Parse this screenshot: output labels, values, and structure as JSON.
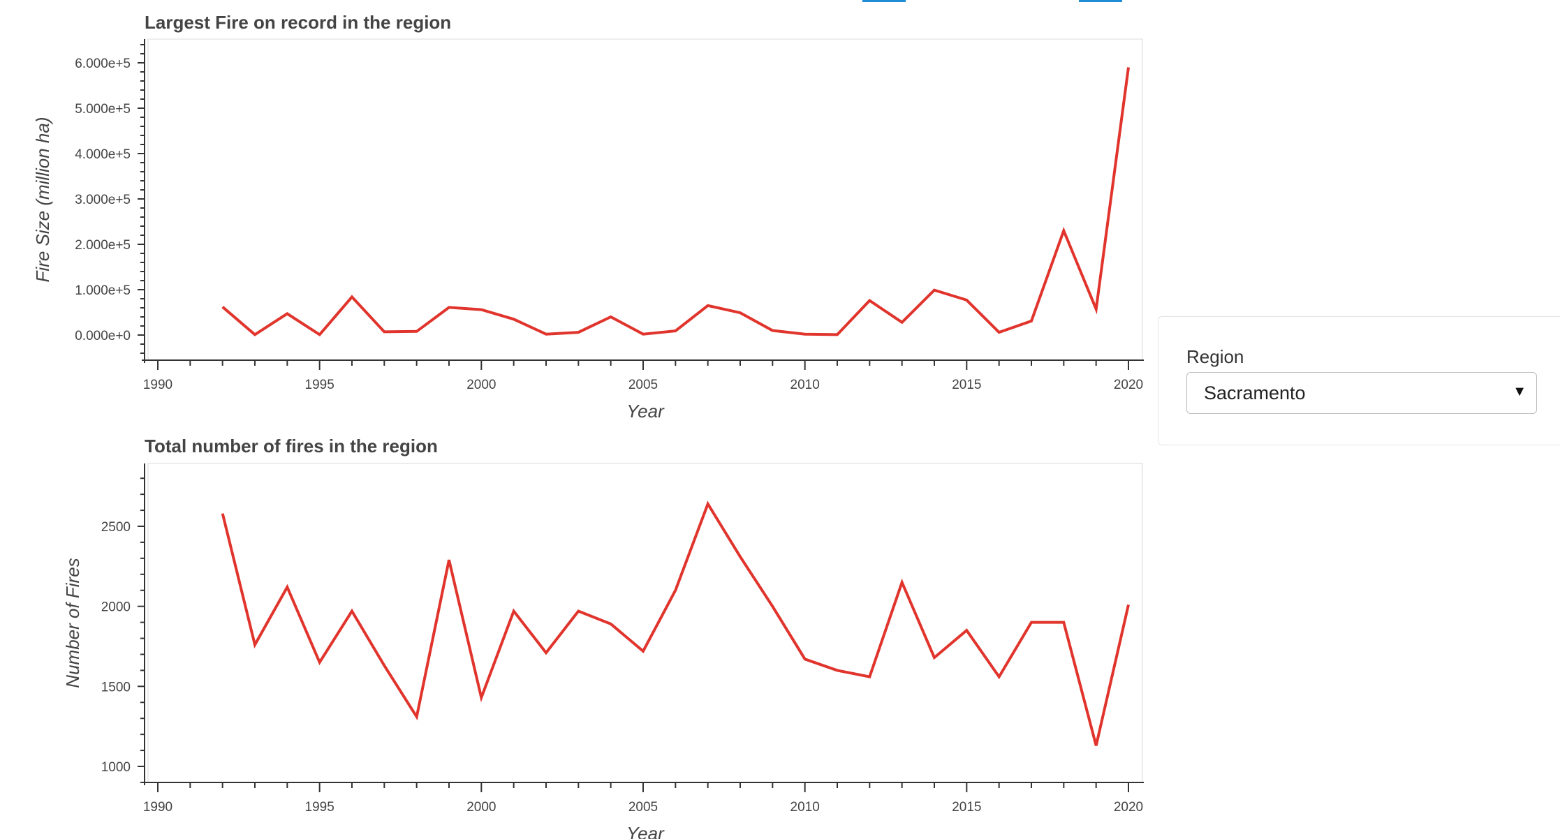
{
  "widget": {
    "label": "Region",
    "selected": "Sacramento"
  },
  "colors": {
    "line": "#e0342c",
    "frame": "#e6e6e6",
    "axis": "#333333",
    "tab": "#1f8dd6"
  },
  "chart_data": [
    {
      "type": "line",
      "title": "Largest Fire on record in the region",
      "xlabel": "Year",
      "ylabel": "Fire Size (million ha)",
      "xlim": [
        1990,
        2020
      ],
      "ylim": [
        0,
        600000
      ],
      "xticks": [
        "1990",
        "1995",
        "2000",
        "2005",
        "2010",
        "2015",
        "2020"
      ],
      "yticks": [
        "0.000e+0",
        "1.000e+5",
        "2.000e+5",
        "3.000e+5",
        "4.000e+5",
        "5.000e+5",
        "6.000e+5"
      ],
      "series": [
        {
          "x": [
            1992,
            1993,
            1994,
            1995,
            1996,
            1997,
            1998,
            1999,
            2000,
            2001,
            2002,
            2003,
            2004,
            2005,
            2006,
            2007,
            2008,
            2009,
            2010,
            2011,
            2012,
            2013,
            2014,
            2015,
            2016,
            2017,
            2018,
            2019,
            2020
          ],
          "values": [
            62000,
            1000,
            47000,
            1000,
            84000,
            7000,
            8000,
            61000,
            56000,
            35000,
            2000,
            6000,
            40000,
            2000,
            9000,
            65000,
            49000,
            10000,
            2000,
            1000,
            76000,
            28000,
            99000,
            77000,
            6000,
            31000,
            230000,
            57000,
            590000
          ]
        }
      ]
    },
    {
      "type": "line",
      "title": "Total number of fires in the region",
      "xlabel": "Year",
      "ylabel": "Number of Fires",
      "xlim": [
        1990,
        2020
      ],
      "ylim": [
        1000,
        2500
      ],
      "xticks": [
        "1990",
        "1995",
        "2000",
        "2005",
        "2010",
        "2015",
        "2020"
      ],
      "yticks": [
        "1000",
        "1500",
        "2000",
        "2500"
      ],
      "series": [
        {
          "x": [
            1992,
            1993,
            1994,
            1995,
            1996,
            1997,
            1998,
            1999,
            2000,
            2001,
            2002,
            2003,
            2004,
            2005,
            2006,
            2007,
            2008,
            2009,
            2010,
            2011,
            2012,
            2013,
            2014,
            2015,
            2016,
            2017,
            2018,
            2019,
            2020
          ],
          "values": [
            2580,
            1760,
            2120,
            1650,
            1970,
            1630,
            1310,
            2290,
            1430,
            1970,
            1710,
            1970,
            1890,
            1720,
            2100,
            2640,
            2310,
            2000,
            1670,
            1600,
            1560,
            2150,
            1680,
            1850,
            1560,
            1900,
            1900,
            1130,
            2010
          ]
        }
      ]
    }
  ]
}
